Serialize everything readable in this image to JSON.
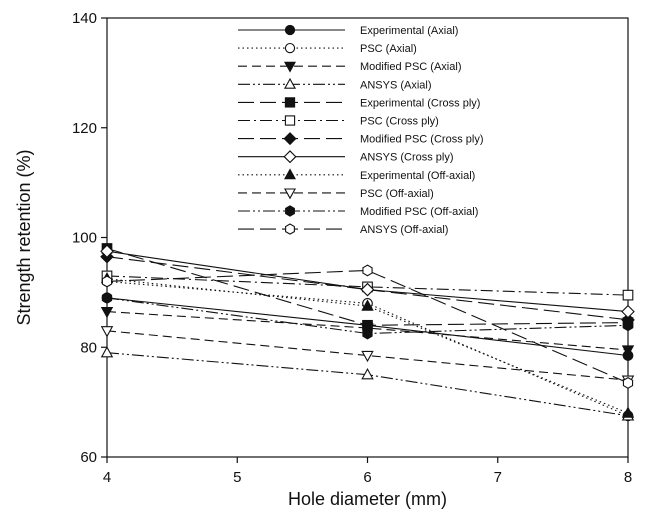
{
  "chart_data": {
    "type": "line",
    "xlabel": "Hole diameter (mm)",
    "ylabel": "Strength retention (%)",
    "xlim": [
      4,
      8
    ],
    "ylim": [
      60,
      140
    ],
    "x_ticks": [
      4,
      5,
      6,
      7,
      8
    ],
    "y_ticks": [
      60,
      80,
      100,
      120,
      140
    ],
    "grid": false,
    "legend_position": "top-center",
    "x": [
      4,
      6,
      8
    ],
    "series": [
      {
        "name": "Experimental (Axial)",
        "values": [
          89,
          84,
          78.5
        ],
        "marker": "circle",
        "fill": "filled",
        "dash": "solid"
      },
      {
        "name": "PSC (Axial)",
        "values": [
          92,
          88,
          67.5
        ],
        "marker": "circle",
        "fill": "open",
        "dash": "dotted"
      },
      {
        "name": "Modified PSC (Axial)",
        "values": [
          86.5,
          83.5,
          79.5
        ],
        "marker": "triangle-down",
        "fill": "filled",
        "dash": "dashed"
      },
      {
        "name": "ANSYS (Axial)",
        "values": [
          79,
          75,
          67.5
        ],
        "marker": "triangle-up",
        "fill": "open",
        "dash": "dashdotdot"
      },
      {
        "name": "Experimental (Cross ply)",
        "values": [
          98,
          84,
          84.5
        ],
        "marker": "square",
        "fill": "filled",
        "dash": "longdash"
      },
      {
        "name": "PSC (Cross ply)",
        "values": [
          93,
          91,
          89.5
        ],
        "marker": "square",
        "fill": "open",
        "dash": "dashdot"
      },
      {
        "name": "Modified PSC (Cross ply)",
        "values": [
          96.5,
          90.5,
          85
        ],
        "marker": "diamond",
        "fill": "filled",
        "dash": "longdash"
      },
      {
        "name": "ANSYS (Cross ply)",
        "values": [
          97.5,
          90.5,
          86.5
        ],
        "marker": "diamond",
        "fill": "open",
        "dash": "solid"
      },
      {
        "name": "Experimental (Off-axial)",
        "values": [
          92.5,
          87.5,
          68
        ],
        "marker": "triangle-up",
        "fill": "filled",
        "dash": "dotted"
      },
      {
        "name": "PSC (Off-axial)",
        "values": [
          83,
          78.5,
          74
        ],
        "marker": "triangle-down",
        "fill": "open",
        "dash": "dashed"
      },
      {
        "name": "Modified PSC (Off-axial)",
        "values": [
          89,
          82.5,
          84
        ],
        "marker": "hexagon",
        "fill": "filled",
        "dash": "dashdotdot"
      },
      {
        "name": "ANSYS (Off-axial)",
        "values": [
          92,
          94,
          73.5
        ],
        "marker": "hexagon",
        "fill": "open",
        "dash": "longdash"
      }
    ]
  }
}
